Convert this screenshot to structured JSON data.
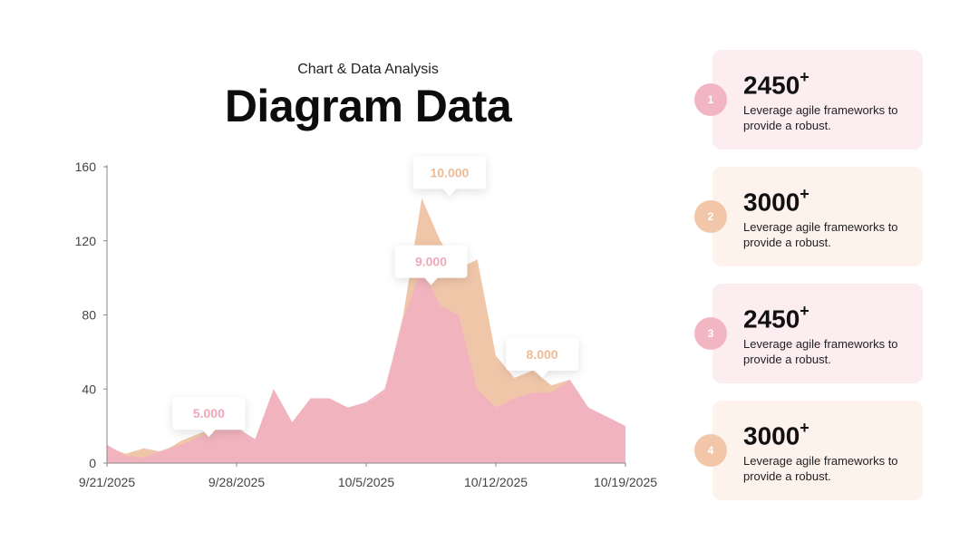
{
  "header": {
    "subtitle": "Chart & Data Analysis",
    "title": "Diagram Data"
  },
  "colors": {
    "pink": "#f0b3bf",
    "peach": "#efc3a4",
    "pink_card": "#fcedf0",
    "peach_card": "#fdf3ec",
    "pink_badge": "#f2b6c3",
    "peach_badge": "#f2c6a8"
  },
  "chart_data": {
    "type": "area",
    "x": [
      "9/21/2025",
      "9/22/2025",
      "9/23/2025",
      "9/24/2025",
      "9/25/2025",
      "9/26/2025",
      "9/27/2025",
      "9/28/2025",
      "9/29/2025",
      "9/30/2025",
      "10/1/2025",
      "10/2/2025",
      "10/3/2025",
      "10/4/2025",
      "10/5/2025",
      "10/6/2025",
      "10/7/2025",
      "10/8/2025",
      "10/9/2025",
      "10/10/2025",
      "10/11/2025",
      "10/12/2025",
      "10/13/2025",
      "10/14/2025",
      "10/15/2025",
      "10/16/2025",
      "10/17/2025",
      "10/18/2025",
      "10/19/2025"
    ],
    "xticks": [
      "9/21/2025",
      "9/28/2025",
      "10/5/2025",
      "10/12/2025",
      "10/19/2025"
    ],
    "yticks": [
      0,
      40,
      80,
      120,
      160
    ],
    "ylim": [
      0,
      160
    ],
    "series": [
      {
        "color": "#efc3a4",
        "values": [
          9,
          5,
          8,
          6,
          12,
          16,
          20,
          20,
          12,
          40,
          22,
          35,
          35,
          30,
          32,
          38,
          80,
          143,
          120,
          105,
          110,
          58,
          46,
          50,
          42,
          45,
          30,
          25,
          20
        ]
      },
      {
        "color": "#f0b3bf",
        "values": [
          10,
          4,
          3,
          7,
          10,
          14,
          18,
          19,
          13,
          40,
          22,
          35,
          35,
          30,
          33,
          40,
          78,
          105,
          85,
          80,
          40,
          30,
          35,
          38,
          38,
          45,
          30,
          25,
          20
        ]
      }
    ],
    "annotations": [
      {
        "text": "5.000",
        "x_index": 5.5,
        "y": 18,
        "color": "#f0a8b8"
      },
      {
        "text": "9.000",
        "x_index": 17.5,
        "y": 100,
        "color": "#f0a8b8"
      },
      {
        "text": "10.000",
        "x_index": 18.5,
        "y": 148,
        "color": "#efbb95"
      },
      {
        "text": "8.000",
        "x_index": 23.5,
        "y": 50,
        "color": "#efbb95"
      }
    ]
  },
  "cards": [
    {
      "badge": "1",
      "number": "2450",
      "suffix": "+",
      "desc": "Leverage agile frameworks to provide a robust.",
      "theme": "pink"
    },
    {
      "badge": "2",
      "number": "3000",
      "suffix": "+",
      "desc": "Leverage agile frameworks to provide a robust.",
      "theme": "peach"
    },
    {
      "badge": "3",
      "number": "2450",
      "suffix": "+",
      "desc": "Leverage agile frameworks to provide a robust.",
      "theme": "pink"
    },
    {
      "badge": "4",
      "number": "3000",
      "suffix": "+",
      "desc": "Leverage agile frameworks to provide a robust.",
      "theme": "peach"
    }
  ]
}
